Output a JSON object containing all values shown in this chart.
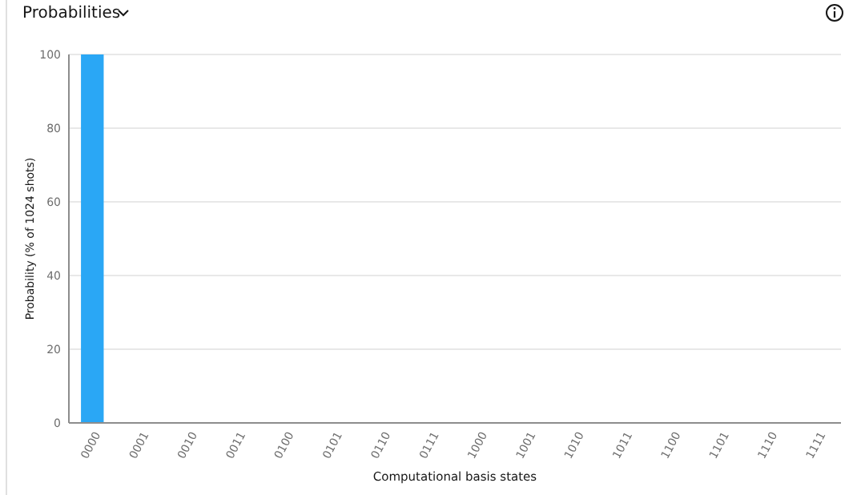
{
  "chart_data": {
    "type": "bar",
    "title": "Probabilities",
    "xlabel": "Computational basis states",
    "ylabel": "Probability (% of 1024 shots)",
    "categories": [
      "0000",
      "0001",
      "0010",
      "0011",
      "0100",
      "0101",
      "0110",
      "0111",
      "1000",
      "1001",
      "1010",
      "1011",
      "1100",
      "1101",
      "1110",
      "1111"
    ],
    "values": [
      100,
      0,
      0,
      0,
      0,
      0,
      0,
      0,
      0,
      0,
      0,
      0,
      0,
      0,
      0,
      0
    ],
    "color": "#2aa7f5",
    "ylim": [
      0,
      100
    ],
    "yticks": [
      0,
      20,
      40,
      60,
      80,
      100
    ],
    "grid": "y"
  }
}
